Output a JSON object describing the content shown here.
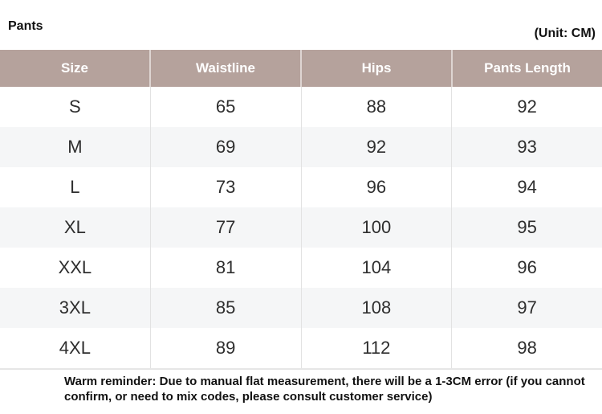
{
  "page": {
    "title": "Pants",
    "unit_label": "(Unit: CM)",
    "footer_note": "Warm reminder: Due to manual flat measurement, there will be a 1-3CM error (if you cannot confirm, or need to mix codes, please consult customer service)"
  },
  "size_table": {
    "columns": [
      "Size",
      "Waistline",
      "Hips",
      "Pants Length"
    ],
    "rows": [
      [
        "S",
        "65",
        "88",
        "92"
      ],
      [
        "M",
        "69",
        "92",
        "93"
      ],
      [
        "L",
        "73",
        "96",
        "94"
      ],
      [
        "XL",
        "77",
        "100",
        "95"
      ],
      [
        "XXL",
        "81",
        "104",
        "96"
      ],
      [
        "3XL",
        "85",
        "108",
        "97"
      ],
      [
        "4XL",
        "89",
        "112",
        "98"
      ]
    ]
  },
  "colors": {
    "header_bg": "#b5a29c",
    "header_text": "#ffffff",
    "row_alt_bg": "#f5f6f7",
    "body_text": "#2e2e2e",
    "divider": "#e2e2e2"
  }
}
